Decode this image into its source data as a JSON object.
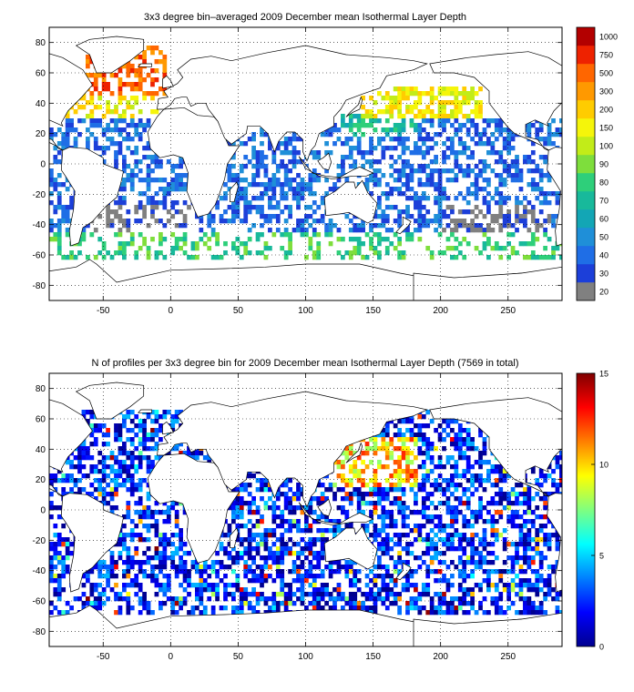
{
  "chart_data": [
    {
      "type": "heatmap",
      "title": "3x3 degree bin–averaged 2009 December mean Isothermal Layer Depth",
      "xlabel": "",
      "ylabel": "",
      "xlim": [
        -90,
        290
      ],
      "ylim": [
        -90,
        90
      ],
      "x_ticks": [
        -50,
        0,
        50,
        100,
        150,
        200,
        250
      ],
      "y_ticks": [
        80,
        60,
        40,
        20,
        0,
        -20,
        -40,
        -60,
        -80
      ],
      "grid": true,
      "bin_size_deg": 3,
      "colorbar": {
        "scale": "categorical",
        "labels": [
          "20",
          "30",
          "40",
          "50",
          "60",
          "70",
          "80",
          "90",
          "100",
          "150",
          "200",
          "300",
          "500",
          "750",
          "1000"
        ],
        "colors": [
          "#808080",
          "#1c3fd9",
          "#1f6ee6",
          "#1f8fd8",
          "#13a6b5",
          "#18b99b",
          "#2ecf7a",
          "#7ede3c",
          "#c2ec18",
          "#f5f50a",
          "#ffcc00",
          "#ff9900",
          "#ff6600",
          "#ee2200",
          "#b30000"
        ]
      },
      "regions": [
        {
          "lon": [
            -65,
            -5
          ],
          "lat": [
            45,
            75
          ],
          "level": 12,
          "density": 0.55
        },
        {
          "lon": [
            -80,
            -10
          ],
          "lat": [
            28,
            48
          ],
          "level": 9,
          "density": 0.5
        },
        {
          "lon": [
            140,
            230
          ],
          "lat": [
            30,
            50
          ],
          "level": 9,
          "density": 0.6
        },
        {
          "lon": [
            125,
            180
          ],
          "lat": [
            18,
            32
          ],
          "level": 5,
          "density": 0.5
        },
        {
          "lon": [
            -90,
            290
          ],
          "lat": [
            -65,
            -48
          ],
          "level": 6,
          "density": 0.35
        },
        {
          "lon": [
            -60,
            20
          ],
          "lat": [
            -45,
            -30
          ],
          "level": 0,
          "density": 0.4
        },
        {
          "lon": [
            200,
            280
          ],
          "lat": [
            -48,
            -30
          ],
          "level": 0,
          "density": 0.45
        },
        {
          "lon": [
            -90,
            290
          ],
          "lat": [
            -48,
            28
          ],
          "level": 2,
          "density": 0.5
        }
      ]
    },
    {
      "type": "heatmap",
      "title": "N of profiles per 3x3 degree bin for 2009 December mean Isothermal Layer Depth  (7569 in total)",
      "xlabel": "",
      "ylabel": "",
      "xlim": [
        -90,
        290
      ],
      "ylim": [
        -90,
        90
      ],
      "x_ticks": [
        -50,
        0,
        50,
        100,
        150,
        200,
        250
      ],
      "y_ticks": [
        80,
        60,
        40,
        20,
        0,
        -20,
        -40,
        -60,
        -80
      ],
      "grid": true,
      "bin_size_deg": 3,
      "total_profiles": 7569,
      "colorbar": {
        "scale": "continuous",
        "min": 0,
        "max": 15,
        "ticks": [
          0,
          5,
          10,
          15
        ],
        "colormap": "jet"
      },
      "regions": [
        {
          "lon": [
            120,
            180
          ],
          "lat": [
            15,
            45
          ],
          "level": 0.7,
          "density": 0.55
        },
        {
          "lon": [
            -90,
            290
          ],
          "lat": [
            -70,
            65
          ],
          "level": 0.15,
          "density": 0.55
        }
      ]
    }
  ]
}
